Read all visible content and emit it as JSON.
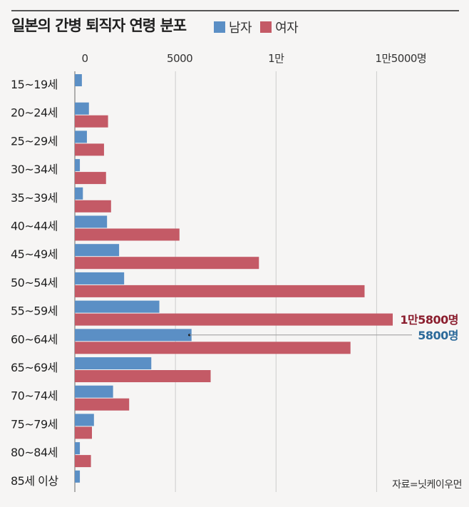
{
  "title": "일본의 간병 퇴직자 연령 분포",
  "legend": {
    "male": "남자",
    "female": "여자"
  },
  "source": "자료=닛케이우먼",
  "colors": {
    "male": "#5b8fc5",
    "female": "#c45a66",
    "male_callout": "#2c6a9a",
    "female_callout": "#8b1e2e",
    "grid": "#cccccc",
    "axis": "#666666"
  },
  "chart_data": {
    "type": "bar",
    "orientation": "horizontal",
    "title": "일본의 간병 퇴직자 연령 분포",
    "xlim": [
      0,
      15800
    ],
    "x_ticks": [
      0,
      5000,
      10000,
      15000
    ],
    "x_tick_labels": [
      "0",
      "5000",
      "1만",
      "1만5000명"
    ],
    "grid": true,
    "legend_position": "top",
    "categories": [
      "15~19세",
      "20~24세",
      "25~29세",
      "30~34세",
      "35~39세",
      "40~44세",
      "45~49세",
      "50~54세",
      "55~59세",
      "60~64세",
      "65~69세",
      "70~74세",
      "75~79세",
      "80~84세",
      "85세 이상"
    ],
    "series": [
      {
        "name": "남자",
        "values": [
          350,
          700,
          600,
          250,
          400,
          1600,
          2200,
          2450,
          4200,
          5800,
          3800,
          1900,
          950,
          250,
          250
        ]
      },
      {
        "name": "여자",
        "values": [
          0,
          1650,
          1450,
          1550,
          1800,
          5200,
          9150,
          14400,
          15800,
          13700,
          6750,
          2700,
          850,
          800,
          0
        ]
      }
    ],
    "annotations": [
      {
        "series": "여자",
        "category": "55~59세",
        "text": "1만5800명"
      },
      {
        "series": "남자",
        "category": "60~64세",
        "text": "5800명"
      }
    ]
  }
}
